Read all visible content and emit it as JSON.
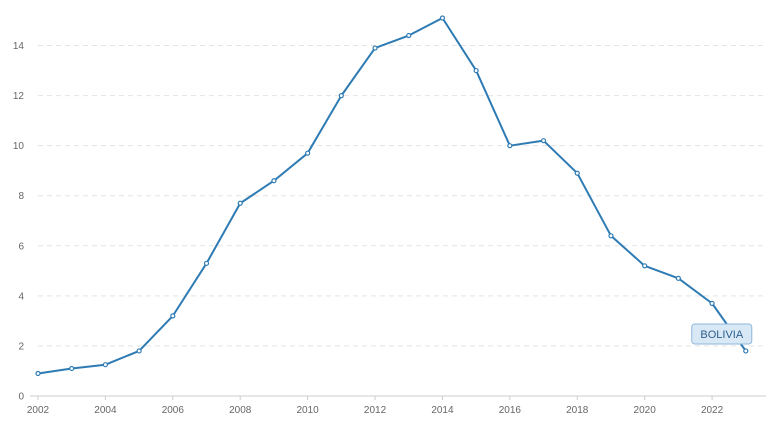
{
  "chart_data": {
    "type": "line",
    "title": "",
    "xlabel": "",
    "ylabel": "",
    "x": [
      2002,
      2003,
      2004,
      2005,
      2006,
      2007,
      2008,
      2009,
      2010,
      2011,
      2012,
      2013,
      2014,
      2015,
      2016,
      2017,
      2018,
      2019,
      2020,
      2021,
      2022,
      2023
    ],
    "series": [
      {
        "name": "BOLIVIA",
        "color": "#2e7bb4",
        "values": [
          0.9,
          1.1,
          1.25,
          1.8,
          3.2,
          5.3,
          7.7,
          8.6,
          9.7,
          12.0,
          13.9,
          14.4,
          15.1,
          13.0,
          10.0,
          10.2,
          8.9,
          6.4,
          5.2,
          4.7,
          3.7,
          1.8
        ]
      }
    ],
    "xticks": [
      "2002",
      "2004",
      "2006",
      "2008",
      "2010",
      "2012",
      "2014",
      "2016",
      "2018",
      "2020",
      "2022"
    ],
    "yticks": [
      "0",
      "2",
      "4",
      "6",
      "8",
      "10",
      "12",
      "14"
    ],
    "xlim": [
      2002,
      2023.6
    ],
    "ylim": [
      0,
      15.5
    ],
    "grid": true,
    "legend": "none"
  }
}
